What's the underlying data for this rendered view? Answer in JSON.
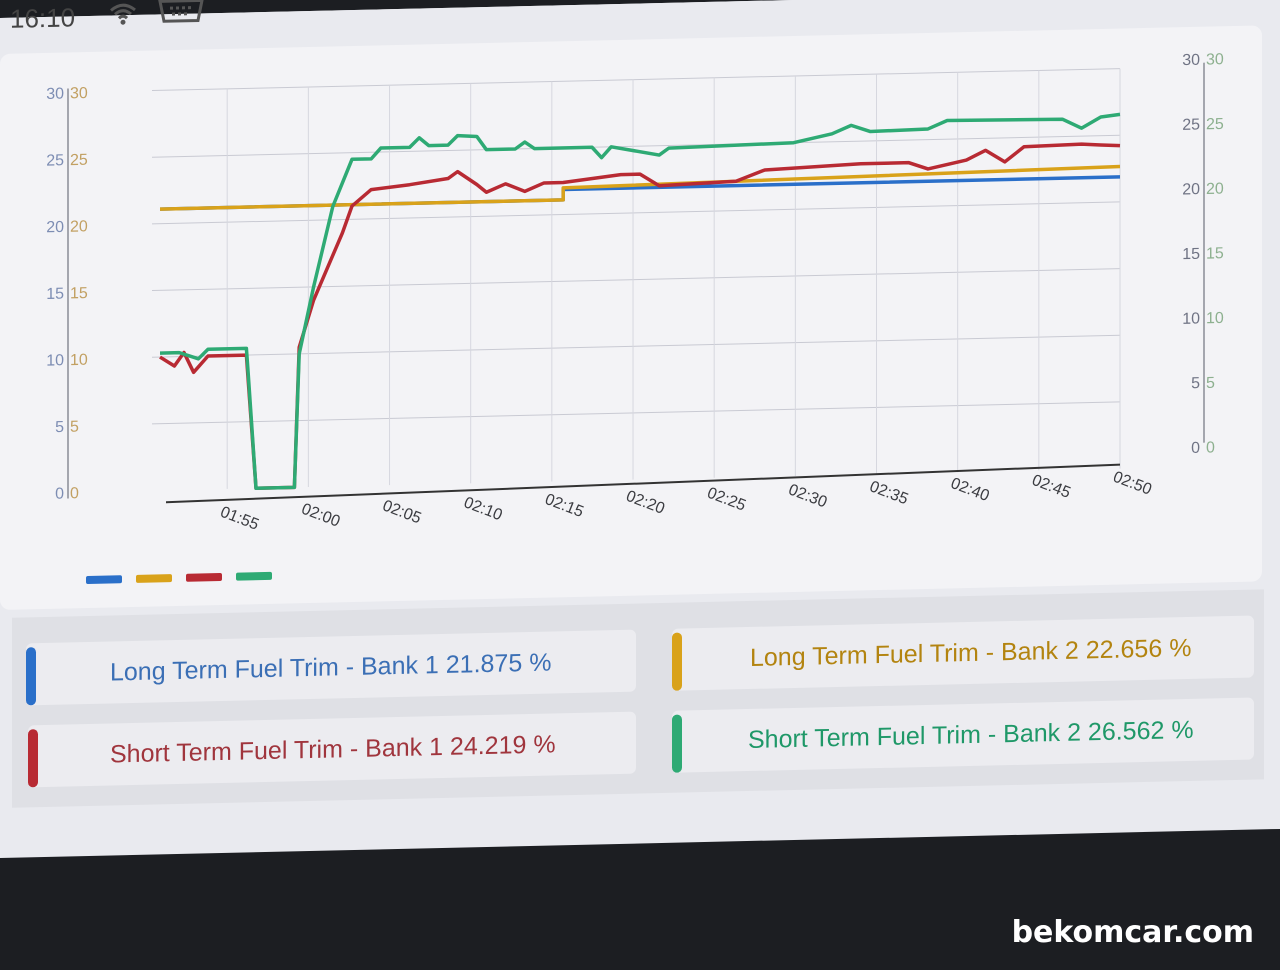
{
  "status_bar": {
    "time": "16:10",
    "wifi_icon": "wifi-icon",
    "obd_icon": "obd-connector-icon"
  },
  "chart_data": {
    "type": "line",
    "x_ticks": [
      "01:55",
      "02:00",
      "02:05",
      "02:10",
      "02:15",
      "02:20",
      "02:25",
      "02:30",
      "02:35",
      "02:40",
      "02:45",
      "02:50"
    ],
    "y_ticks_left_a": [
      "0",
      "5",
      "10",
      "15",
      "20",
      "25",
      "30"
    ],
    "y_ticks_left_b": [
      "0",
      "5",
      "10",
      "15",
      "20",
      "25",
      "30"
    ],
    "y_ticks_right_a": [
      "0",
      "5",
      "10",
      "15",
      "20",
      "25",
      "30"
    ],
    "y_ticks_right_b": [
      "0",
      "5",
      "10",
      "15",
      "20",
      "25",
      "30"
    ],
    "ylim": [
      0,
      30
    ],
    "grid": true,
    "legend": "bottom-left",
    "series": [
      {
        "color": "#2a6fc9",
        "points": [
          [
            0,
            21.1
          ],
          [
            0.42,
            21.1
          ],
          [
            0.42,
            21.875
          ],
          [
            1.0,
            21.875
          ]
        ]
      },
      {
        "color": "#d9a21a",
        "points": [
          [
            0,
            21.1
          ],
          [
            0.42,
            21.1
          ],
          [
            0.42,
            22.0
          ],
          [
            1.0,
            22.656
          ]
        ]
      },
      {
        "color": "#b82a33",
        "points": [
          [
            0,
            10.0
          ],
          [
            0.015,
            9.3
          ],
          [
            0.025,
            10.3
          ],
          [
            0.035,
            8.8
          ],
          [
            0.05,
            10.0
          ],
          [
            0.09,
            10.0
          ],
          [
            0.092,
            8.0
          ],
          [
            0.1,
            0
          ],
          [
            0.14,
            0
          ],
          [
            0.145,
            10.5
          ],
          [
            0.16,
            14.0
          ],
          [
            0.19,
            19.0
          ],
          [
            0.2,
            21.0
          ],
          [
            0.22,
            22.2
          ],
          [
            0.26,
            22.5
          ],
          [
            0.3,
            22.9
          ],
          [
            0.31,
            23.4
          ],
          [
            0.33,
            22.4
          ],
          [
            0.34,
            21.8
          ],
          [
            0.36,
            22.4
          ],
          [
            0.38,
            21.8
          ],
          [
            0.4,
            22.4
          ],
          [
            0.42,
            22.4
          ],
          [
            0.48,
            22.9
          ],
          [
            0.5,
            22.9
          ],
          [
            0.52,
            22.0
          ],
          [
            0.6,
            22.2
          ],
          [
            0.63,
            23.0
          ],
          [
            0.73,
            23.3
          ],
          [
            0.78,
            23.3
          ],
          [
            0.8,
            22.8
          ],
          [
            0.84,
            23.4
          ],
          [
            0.86,
            24.1
          ],
          [
            0.88,
            23.2
          ],
          [
            0.9,
            24.3
          ],
          [
            0.96,
            24.4
          ],
          [
            0.98,
            24.3
          ],
          [
            1.0,
            24.219
          ]
        ]
      },
      {
        "color": "#2eaa74",
        "points": [
          [
            0,
            10.3
          ],
          [
            0.02,
            10.3
          ],
          [
            0.04,
            9.8
          ],
          [
            0.05,
            10.5
          ],
          [
            0.09,
            10.5
          ],
          [
            0.092,
            8.5
          ],
          [
            0.1,
            0
          ],
          [
            0.14,
            0
          ],
          [
            0.145,
            10.0
          ],
          [
            0.16,
            15.0
          ],
          [
            0.18,
            21.0
          ],
          [
            0.2,
            24.5
          ],
          [
            0.22,
            24.5
          ],
          [
            0.23,
            25.3
          ],
          [
            0.26,
            25.3
          ],
          [
            0.27,
            26.0
          ],
          [
            0.28,
            25.4
          ],
          [
            0.3,
            25.4
          ],
          [
            0.31,
            26.1
          ],
          [
            0.33,
            26.0
          ],
          [
            0.34,
            25.0
          ],
          [
            0.37,
            25.0
          ],
          [
            0.38,
            25.5
          ],
          [
            0.39,
            25.0
          ],
          [
            0.45,
            25.0
          ],
          [
            0.46,
            24.2
          ],
          [
            0.47,
            25.0
          ],
          [
            0.52,
            24.3
          ],
          [
            0.53,
            24.8
          ],
          [
            0.66,
            25.0
          ],
          [
            0.7,
            25.6
          ],
          [
            0.72,
            26.2
          ],
          [
            0.74,
            25.7
          ],
          [
            0.8,
            25.8
          ],
          [
            0.82,
            26.4
          ],
          [
            0.94,
            26.3
          ],
          [
            0.96,
            25.6
          ],
          [
            0.98,
            26.4
          ],
          [
            1.0,
            26.562
          ]
        ]
      }
    ]
  },
  "legend_colors": [
    "#2a6fc9",
    "#d9a21a",
    "#b82a33",
    "#2eaa74"
  ],
  "cards": [
    {
      "label": "Long Term Fuel Trim - Bank 1 21.875 %",
      "color": "#2a6fc9",
      "text_color": "#3b6fb5"
    },
    {
      "label": "Long Term Fuel Trim - Bank 2 22.656 %",
      "color": "#d9a21a",
      "text_color": "#b38410"
    },
    {
      "label": "Short Term Fuel Trim - Bank 1 24.219 %",
      "color": "#b82a33",
      "text_color": "#a0353d"
    },
    {
      "label": "Short Term Fuel Trim - Bank 2 26.562 %",
      "color": "#2eaa74",
      "text_color": "#1f9868"
    }
  ],
  "watermark": "bekomcar.com"
}
